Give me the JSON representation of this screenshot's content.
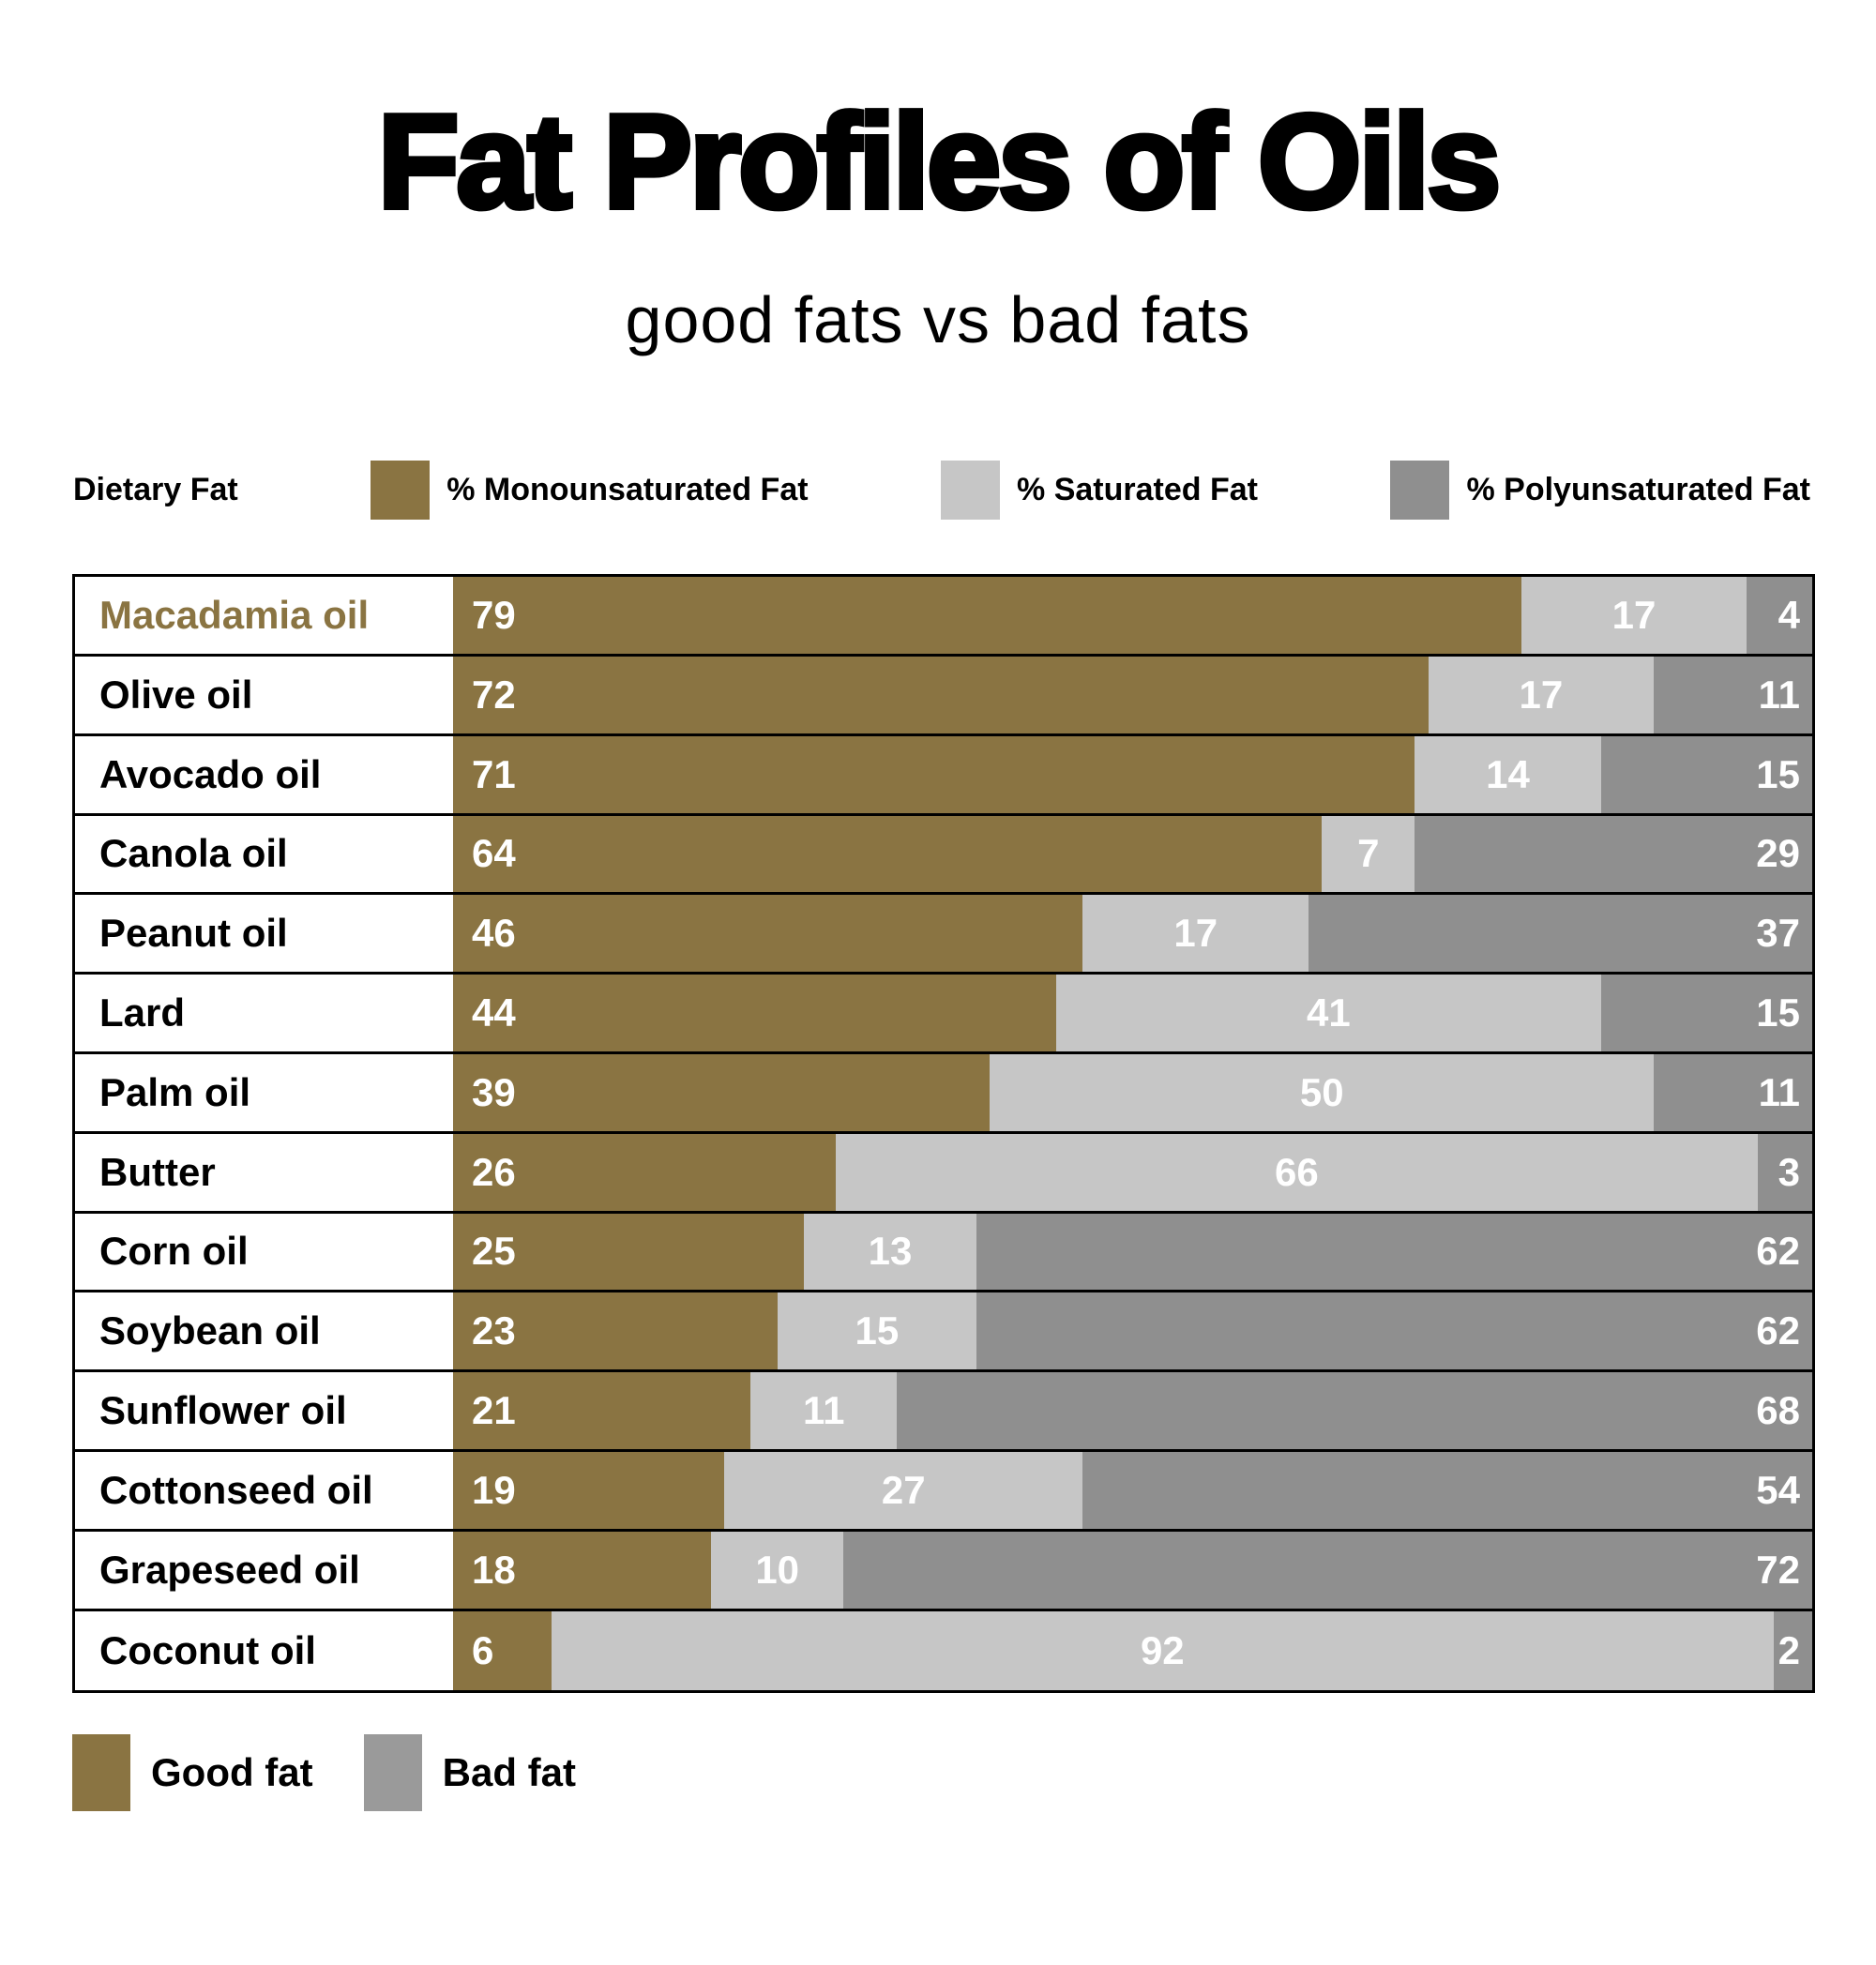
{
  "title": "Fat Profiles of Oils",
  "subtitle": "good fats vs bad fats",
  "colors": {
    "mono": "#8a7442",
    "sat": "#c6c6c6",
    "poly": "#8f8f8f",
    "bad": "#9a9a9a",
    "highlight": "#8a7442"
  },
  "legend": {
    "axis_label": "Dietary Fat",
    "items": [
      {
        "label": "% Monounsaturated Fat",
        "color_key": "mono"
      },
      {
        "label": "% Saturated Fat",
        "color_key": "sat"
      },
      {
        "label": "% Polyunsaturated Fat",
        "color_key": "poly"
      }
    ]
  },
  "footer_legend": [
    {
      "label": "Good fat",
      "color_key": "mono"
    },
    {
      "label": "Bad fat",
      "color_key": "bad"
    }
  ],
  "chart_data": {
    "type": "bar",
    "orientation": "horizontal",
    "stacked": true,
    "units": "percent",
    "value_range": [
      0,
      100
    ],
    "grid": false,
    "legend_position": "top",
    "highlighted_category": "Macadamia oil",
    "categories": [
      "Macadamia oil",
      "Olive oil",
      "Avocado oil",
      "Canola oil",
      "Peanut oil",
      "Lard",
      "Palm oil",
      "Butter",
      "Corn oil",
      "Soybean oil",
      "Sunflower oil",
      "Cottonseed oil",
      "Grapeseed oil",
      "Coconut oil"
    ],
    "series": [
      {
        "name": "% Monounsaturated Fat",
        "color_key": "mono",
        "values": [
          79,
          72,
          71,
          64,
          46,
          44,
          39,
          26,
          25,
          23,
          21,
          19,
          18,
          6
        ]
      },
      {
        "name": "% Saturated Fat",
        "color_key": "sat",
        "values": [
          17,
          17,
          14,
          7,
          17,
          41,
          50,
          66,
          13,
          15,
          11,
          27,
          10,
          92
        ]
      },
      {
        "name": "% Polyunsaturated Fat",
        "color_key": "poly",
        "values": [
          4,
          11,
          15,
          29,
          37,
          15,
          11,
          3,
          62,
          62,
          68,
          54,
          72,
          2
        ]
      }
    ]
  }
}
